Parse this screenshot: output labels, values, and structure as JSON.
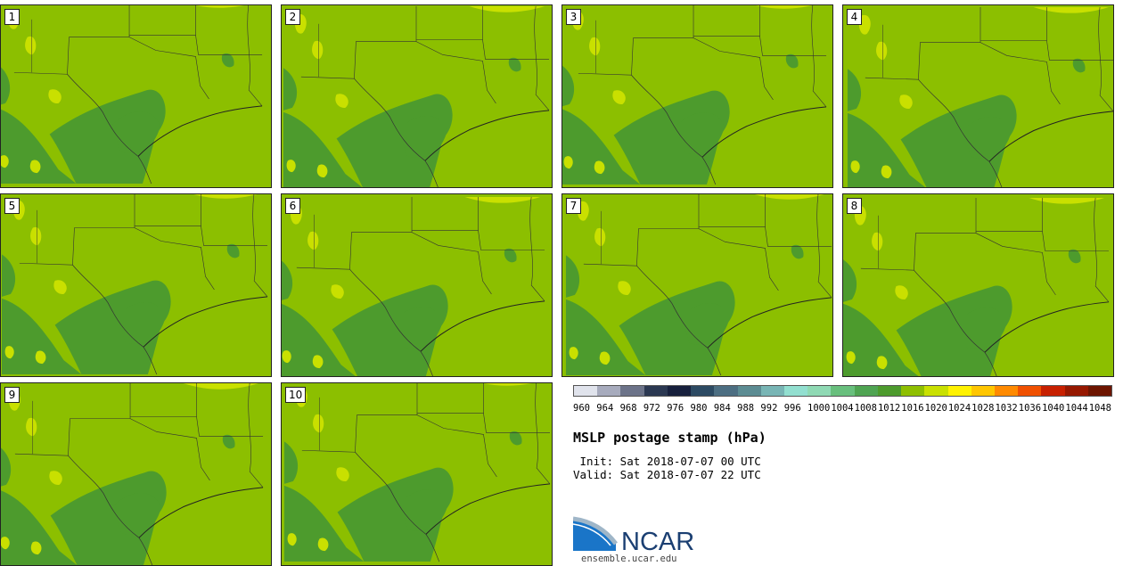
{
  "figure": {
    "title": "MSLP postage stamp (hPa)",
    "init": " Init: Sat 2018-07-07 00 UTC",
    "valid": "Valid: Sat 2018-07-07 22 UTC",
    "logo_text": "NCAR",
    "logo_url": "ensemble.ucar.edu"
  },
  "panels": [
    "1",
    "2",
    "3",
    "4",
    "5",
    "6",
    "7",
    "8",
    "9",
    "10"
  ],
  "colorbar": {
    "colors": [
      "#e0e3ec",
      "#a7abbd",
      "#6c7389",
      "#2b3852",
      "#17203d",
      "#2c4a63",
      "#4c6e82",
      "#5c8c93",
      "#78b5b5",
      "#92dfd0",
      "#8fd9b4",
      "#68bf7d",
      "#4fa452",
      "#4d9b2d",
      "#8ebf00",
      "#c9e000",
      "#fff200",
      "#ffc600",
      "#ff8a00",
      "#f05000",
      "#c72000",
      "#961800",
      "#6d1500"
    ],
    "labels": [
      "960",
      "964",
      "968",
      "972",
      "976",
      "980",
      "984",
      "988",
      "992",
      "996",
      "1000",
      "1004",
      "1008",
      "1012",
      "1016",
      "1020",
      "1024",
      "1028",
      "1032",
      "1036",
      "1040",
      "1044",
      "1048"
    ]
  },
  "map_colors": {
    "background": "#8cbf00",
    "low": "#4d9b2d",
    "high": "#c9e000"
  }
}
